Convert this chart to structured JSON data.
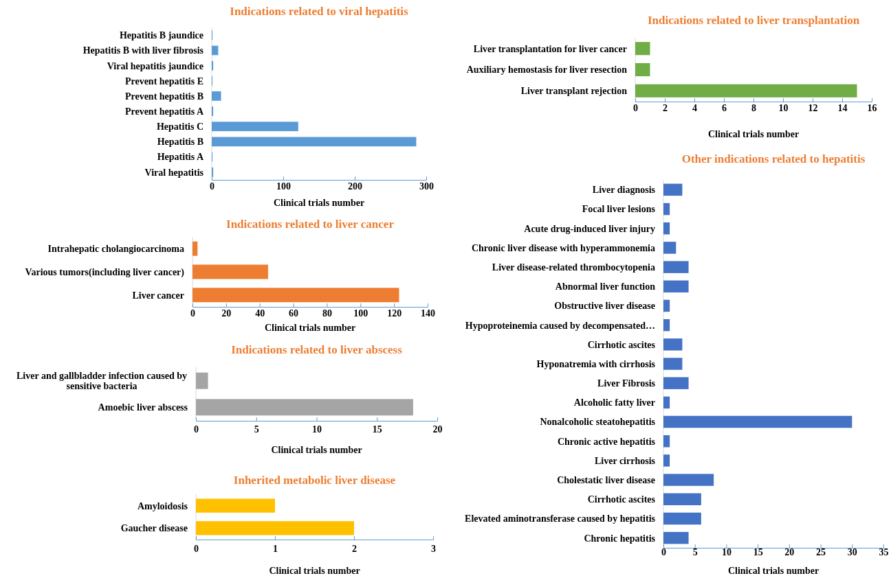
{
  "chart_data": [
    {
      "type": "bar",
      "orientation": "horizontal",
      "title": "Indications related to viral hepatitis",
      "xlabel": "Clinical trials number",
      "categories": [
        "Hepatitis B jaundice",
        "Hepatitis B with liver fibrosis",
        "Viral hepatitis jaundice",
        "Prevent hepatitis E",
        "Prevent hepatitis B",
        "Prevent hepatitis A",
        "Hepatitis C",
        "Hepatitis B",
        "Hepatitis A",
        "Viral hepatitis"
      ],
      "values": [
        1,
        9,
        2,
        1,
        13,
        2,
        121,
        286,
        1,
        2
      ],
      "color": "#5b9bd5",
      "xlim": [
        0,
        300
      ],
      "xticks": [
        0,
        100,
        200,
        300
      ]
    },
    {
      "type": "bar",
      "orientation": "horizontal",
      "title": "Indications related to liver transplantation",
      "xlabel": "Clinical trials number",
      "categories": [
        "Liver transplantation for liver cancer",
        "Auxiliary hemostasis for liver resection",
        "Liver transplant rejection"
      ],
      "values": [
        1,
        1,
        15
      ],
      "color": "#70ad47",
      "xlim": [
        0,
        16
      ],
      "xticks": [
        0,
        2,
        4,
        6,
        8,
        10,
        12,
        14,
        16
      ]
    },
    {
      "type": "bar",
      "orientation": "horizontal",
      "title": "Indications related to liver cancer",
      "xlabel": "Clinical trials number",
      "categories": [
        "Intrahepatic cholangiocarcinoma",
        "Various tumors(including liver cancer)",
        "Liver cancer"
      ],
      "values": [
        3,
        45,
        123
      ],
      "color": "#ed7d31",
      "xlim": [
        0,
        140
      ],
      "xticks": [
        0,
        20,
        40,
        60,
        80,
        100,
        120,
        140
      ]
    },
    {
      "type": "bar",
      "orientation": "horizontal",
      "title": "Other indications related to hepatitis",
      "xlabel": "Clinical trials number",
      "categories": [
        "Liver diagnosis",
        "Focal liver lesions",
        "Acute drug-induced liver injury",
        "Chronic liver disease with hyperammonemia",
        "Liver disease-related thrombocytopenia",
        "Abnormal liver function",
        "Obstructive liver disease",
        "Hypoproteinemia caused by decompensated…",
        "Cirrhotic ascites",
        "Hyponatremia with cirrhosis",
        "Liver Fibrosis",
        "Alcoholic fatty liver",
        "Nonalcoholic steatohepatitis",
        "Chronic active hepatitis",
        "Liver cirrhosis",
        "Cholestatic liver disease",
        "Cirrhotic ascites",
        "Elevated aminotransferase caused by hepatitis",
        "Chronic hepatitis"
      ],
      "values": [
        3,
        1,
        1,
        2,
        4,
        4,
        1,
        1,
        3,
        3,
        4,
        1,
        30,
        1,
        1,
        8,
        6,
        6,
        4
      ],
      "color": "#4472c4",
      "xlim": [
        0,
        35
      ],
      "xticks": [
        0,
        5,
        10,
        15,
        20,
        25,
        30,
        35
      ]
    },
    {
      "type": "bar",
      "orientation": "horizontal",
      "title": "Indications related to liver abscess",
      "xlabel": "Clinical trials number",
      "categories": [
        "Liver and gallbladder infection caused by sensitive bacteria",
        "Amoebic liver abscess"
      ],
      "values": [
        1,
        18
      ],
      "color": "#a5a5a5",
      "xlim": [
        0,
        20
      ],
      "xticks": [
        0,
        5,
        10,
        15,
        20
      ]
    },
    {
      "type": "bar",
      "orientation": "horizontal",
      "title": "Inherited metabolic liver disease",
      "xlabel": "Clinical trials number",
      "categories": [
        "Amyloidosis",
        "Gaucher disease"
      ],
      "values": [
        1,
        2
      ],
      "color": "#ffc000",
      "xlim": [
        0,
        3
      ],
      "xticks": [
        0,
        1,
        2,
        3
      ]
    }
  ]
}
